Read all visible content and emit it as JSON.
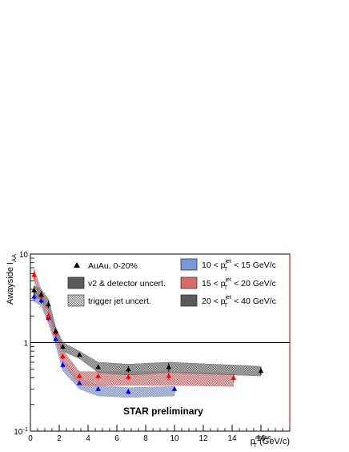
{
  "chart_data": {
    "type": "scatter",
    "xlabel": {
      "main": "p",
      "sub": "T",
      "sup": "assoc",
      "suffix": " (GeV/c)"
    },
    "ylabel": {
      "main": "Awayside I",
      "sub": "AA"
    },
    "xlim": [
      0,
      18
    ],
    "ylim": [
      0.1,
      10
    ],
    "yscale": "log",
    "x_ticks": [
      0,
      2,
      4,
      6,
      8,
      10,
      12,
      14,
      16
    ],
    "y_ticks": [
      {
        "value": 0.1,
        "base": "10",
        "exp": "-1"
      },
      {
        "value": 1,
        "base": "1",
        "exp": ""
      },
      {
        "value": 10,
        "base": "10",
        "exp": ""
      }
    ],
    "reference_line": 1,
    "annotation": "STAR preliminary",
    "legend_left": [
      {
        "label": "AuAu, 0-20%",
        "symbol": "triangle",
        "color": "#000000"
      },
      {
        "label": "v2 & detector uncert.",
        "symbol": "box",
        "color": "#5a5a5a"
      },
      {
        "label": "trigger jet uncert.",
        "symbol": "hatched",
        "color": "#8a8a8a"
      }
    ],
    "legend_right": [
      {
        "lo": "10 < p",
        "sup": "jet",
        "sub": "T",
        "hi": " < 15 GeV/c",
        "color": "#7a97d6"
      },
      {
        "lo": "15 < p",
        "sup": "jet",
        "sub": "T",
        "hi": " < 20 GeV/c",
        "color": "#d86a6a"
      },
      {
        "lo": "20 < p",
        "sup": "jet",
        "sub": "T",
        "hi": " < 40 GeV/c",
        "color": "#5a5a5a"
      }
    ],
    "series": [
      {
        "color": "#0000ff",
        "band_color": "#7a97d6",
        "x": [
          0.25,
          0.75,
          1.25,
          1.75,
          2.25,
          3.4,
          4.7,
          6.8,
          10.0
        ],
        "y": [
          3.3,
          3.0,
          1.9,
          1.1,
          0.56,
          0.35,
          0.3,
          0.28,
          0.3
        ],
        "err": [
          0.3,
          0.25,
          0.15,
          0.08,
          0.04,
          0.02,
          0.015,
          0.02,
          0.02
        ],
        "band_x": [
          0.25,
          0.75,
          1.25,
          1.75,
          2.25,
          3.4,
          4.7,
          6.8,
          10.0
        ],
        "band_lo": [
          2.9,
          2.6,
          1.65,
          0.95,
          0.48,
          0.3,
          0.25,
          0.24,
          0.25
        ],
        "band_hi": [
          3.8,
          3.4,
          2.2,
          1.25,
          0.66,
          0.4,
          0.33,
          0.31,
          0.32
        ]
      },
      {
        "color": "#ff0000",
        "band_color": "#d86a6a",
        "x": [
          0.25,
          0.75,
          1.25,
          1.75,
          2.25,
          3.4,
          4.7,
          6.8,
          9.6,
          14.1
        ],
        "y": [
          5.8,
          3.4,
          2.0,
          1.3,
          0.7,
          0.42,
          0.42,
          0.41,
          0.42,
          0.4
        ],
        "err": [
          0.6,
          0.3,
          0.2,
          0.1,
          0.05,
          0.03,
          0.03,
          0.03,
          0.04,
          0.04
        ],
        "band_x": [
          0.25,
          0.75,
          1.25,
          1.75,
          2.25,
          3.4,
          4.7,
          6.8,
          9.6,
          14.1
        ],
        "band_lo": [
          5.0,
          3.0,
          1.75,
          1.1,
          0.6,
          0.33,
          0.33,
          0.33,
          0.33,
          0.32
        ],
        "band_hi": [
          6.8,
          3.9,
          2.3,
          1.5,
          0.82,
          0.47,
          0.47,
          0.47,
          0.47,
          0.45
        ]
      },
      {
        "color": "#000000",
        "band_color": "#5a5a5a",
        "x": [
          0.25,
          0.75,
          1.25,
          1.75,
          2.25,
          3.4,
          4.7,
          6.8,
          9.6,
          16.0
        ],
        "y": [
          3.9,
          3.5,
          2.7,
          1.35,
          0.9,
          0.73,
          0.53,
          0.5,
          0.53,
          0.48
        ],
        "err": [
          0.4,
          0.3,
          0.25,
          0.1,
          0.06,
          0.04,
          0.03,
          0.04,
          0.06,
          0.05
        ],
        "band_x": [
          0.25,
          0.75,
          1.25,
          1.75,
          2.25,
          3.4,
          4.7,
          6.8,
          9.6,
          16.0
        ],
        "band_lo": [
          3.4,
          3.0,
          2.3,
          1.2,
          0.8,
          0.66,
          0.46,
          0.43,
          0.46,
          0.42
        ],
        "band_hi": [
          4.4,
          4.0,
          3.1,
          1.5,
          1.0,
          0.8,
          0.6,
          0.57,
          0.6,
          0.54
        ]
      }
    ]
  }
}
